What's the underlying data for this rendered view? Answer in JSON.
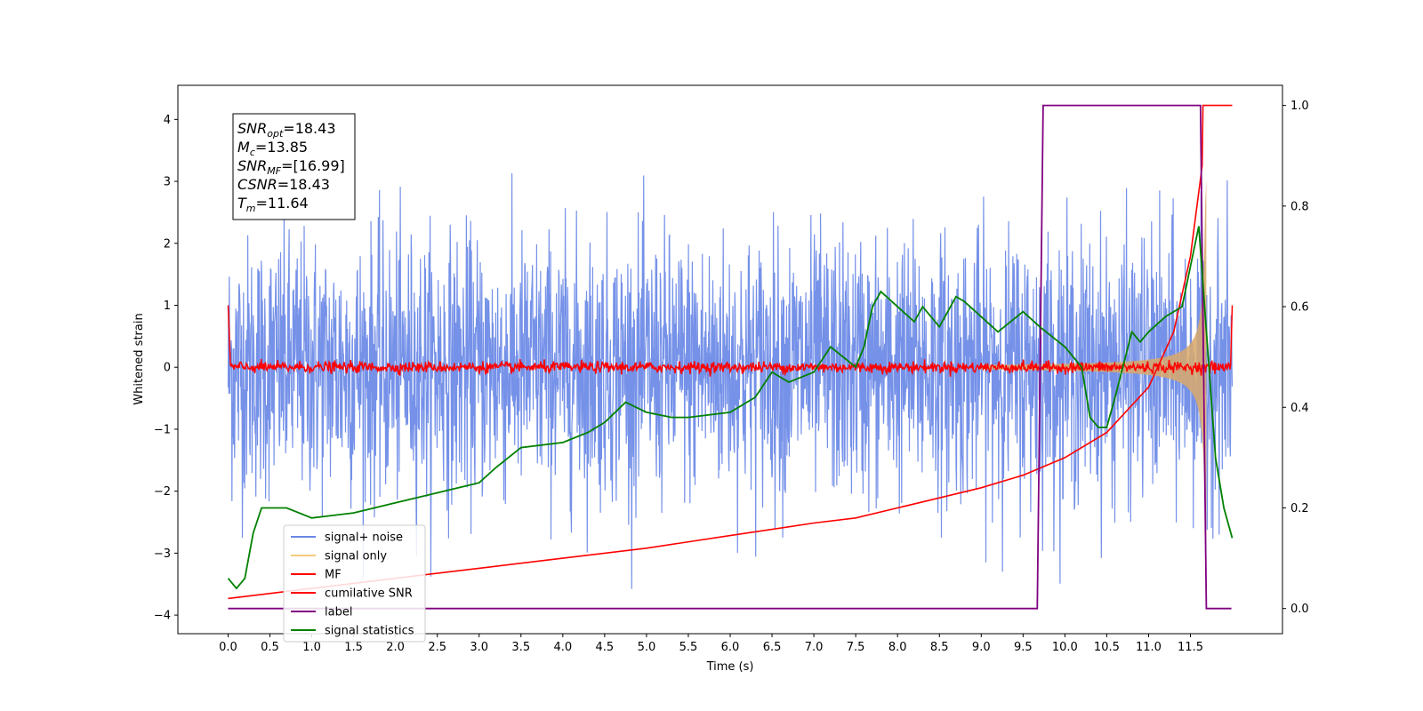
{
  "chart_data": {
    "type": "line",
    "xlabel": "Time (s)",
    "ylabel": "Whitened strain",
    "xlim": [
      -0.6,
      12.6
    ],
    "ylim": [
      -4.3,
      4.55
    ],
    "ylim_right": [
      -0.05,
      1.04
    ],
    "xticks": [
      "0.0",
      "0.5",
      "1.0",
      "1.5",
      "2.0",
      "2.5",
      "3.0",
      "3.5",
      "4.0",
      "4.5",
      "5.0",
      "5.5",
      "6.0",
      "6.5",
      "7.0",
      "7.5",
      "8.0",
      "8.5",
      "9.0",
      "9.5",
      "10.0",
      "10.5",
      "11.0",
      "11.5"
    ],
    "yticks": [
      "−4",
      "−3",
      "−2",
      "−1",
      "0",
      "1",
      "2",
      "3",
      "4"
    ],
    "yticks_right": [
      "0.0",
      "0.2",
      "0.4",
      "0.6",
      "0.8",
      "1.0"
    ],
    "annotation": {
      "lines": [
        {
          "base": "SNR",
          "sub": "opt",
          "value": "=18.43"
        },
        {
          "base": "M",
          "sub": "c",
          "value": "=13.85"
        },
        {
          "base": "SNR",
          "sub": "MF",
          "value": "=[16.99]"
        },
        {
          "base": "CSNR",
          "sub": "",
          "value": "=18.43"
        },
        {
          "base": "T",
          "sub": "m",
          "value": "=11.64"
        }
      ]
    },
    "legend": {
      "position": "lower-left",
      "entries": [
        {
          "label": "signal+ noise",
          "color": "#6a86e6"
        },
        {
          "label": "signal only",
          "color": "#f5c97a"
        },
        {
          "label": "MF",
          "color": "#ff0000"
        },
        {
          "label": "cumilative SNR",
          "color": "#ff0000"
        },
        {
          "label": "label",
          "color": "#800080"
        },
        {
          "label": "signal statistics",
          "color": "#008000"
        }
      ]
    },
    "series": [
      {
        "name": "signal+ noise",
        "axis": "left",
        "color": "#7591e8",
        "description_range": [
          -2.6,
          2.6
        ],
        "x_range": [
          0,
          12.0
        ]
      },
      {
        "name": "signal only",
        "axis": "left",
        "color": "#d9a86a",
        "chirp_end": 11.64
      },
      {
        "name": "MF",
        "axis": "left",
        "color": "#ff0000",
        "level": 0.0
      },
      {
        "name": "cumilative SNR",
        "axis": "right",
        "color": "#ff0000",
        "x": [
          0.0,
          1.0,
          2.0,
          3.0,
          4.0,
          5.0,
          6.0,
          7.0,
          7.5,
          8.0,
          8.5,
          9.0,
          9.5,
          10.0,
          10.5,
          11.0,
          11.3,
          11.5,
          11.64,
          11.65,
          12.0
        ],
        "y": [
          0.02,
          0.04,
          0.06,
          0.08,
          0.1,
          0.12,
          0.145,
          0.17,
          0.18,
          0.2,
          0.22,
          0.24,
          0.265,
          0.3,
          0.35,
          0.44,
          0.55,
          0.7,
          0.88,
          1.0,
          1.0
        ]
      },
      {
        "name": "label",
        "axis": "right",
        "color": "#800080",
        "x": [
          0.0,
          9.67,
          9.74,
          11.62,
          11.69,
          11.99
        ],
        "y": [
          0.0,
          0.0,
          1.0,
          1.0,
          0.0,
          0.0
        ]
      },
      {
        "name": "signal statistics",
        "axis": "right",
        "color": "#008000",
        "x": [
          0.0,
          0.1,
          0.2,
          0.3,
          0.4,
          0.5,
          0.7,
          1.0,
          1.5,
          2.0,
          2.5,
          3.0,
          3.2,
          3.5,
          4.0,
          4.3,
          4.5,
          4.75,
          5.0,
          5.3,
          5.5,
          6.0,
          6.3,
          6.5,
          6.7,
          7.0,
          7.2,
          7.5,
          7.6,
          7.7,
          7.8,
          8.0,
          8.2,
          8.3,
          8.5,
          8.7,
          8.8,
          9.0,
          9.2,
          9.5,
          9.7,
          10.0,
          10.2,
          10.3,
          10.4,
          10.5,
          10.6,
          10.8,
          10.9,
          11.0,
          11.2,
          11.4,
          11.5,
          11.6,
          11.8,
          11.9,
          12.0
        ],
        "y": [
          0.06,
          0.04,
          0.06,
          0.15,
          0.2,
          0.2,
          0.2,
          0.18,
          0.19,
          0.21,
          0.23,
          0.25,
          0.28,
          0.32,
          0.33,
          0.35,
          0.37,
          0.41,
          0.39,
          0.38,
          0.38,
          0.39,
          0.42,
          0.47,
          0.45,
          0.47,
          0.52,
          0.48,
          0.52,
          0.6,
          0.63,
          0.6,
          0.57,
          0.6,
          0.56,
          0.62,
          0.61,
          0.58,
          0.55,
          0.59,
          0.56,
          0.52,
          0.48,
          0.38,
          0.36,
          0.36,
          0.42,
          0.55,
          0.53,
          0.55,
          0.58,
          0.6,
          0.68,
          0.76,
          0.3,
          0.2,
          0.14
        ]
      }
    ]
  }
}
